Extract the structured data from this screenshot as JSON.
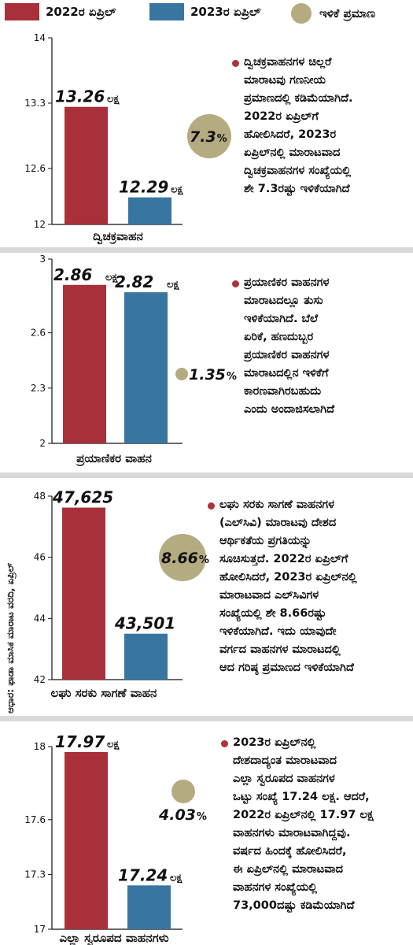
{
  "legend": {
    "items": [
      {
        "label": "2022ರ ಏಪ್ರಿಲ್",
        "color": "#a8303a",
        "shape": "square"
      },
      {
        "label": "2023ರ ಏಪ್ರಿಲ್",
        "color": "#3875a0",
        "shape": "square"
      },
      {
        "label": "ಇಳಿಕೆ ಪ್ರಮಾಣ",
        "color": "#b5ab80",
        "shape": "circle"
      }
    ]
  },
  "colors": {
    "bar_2022": "#a8303a",
    "bar_2023": "#3875a0",
    "decline": "#b5ab80",
    "bullet": "#b03038",
    "divider": "#d9d9d9"
  },
  "source_note": "ಆಧಾರ: ಫಾಡಾ ಮಾಸಿಕ ಮಾರಾಟ ವರದಿ, ಏಪ್ರಿಲ್",
  "chart_data": [
    {
      "type": "bar",
      "categories": [
        "ದ್ವಿಚಕ್ರವಾಹನ"
      ],
      "series": [
        {
          "name": "2022ರ ಏಪ್ರಿಲ್",
          "values": [
            13.26
          ],
          "label": "13.26",
          "unit": "ಲಕ್ಷ"
        },
        {
          "name": "2023ರ ಏಪ್ರಿಲ್",
          "values": [
            12.29
          ],
          "label": "12.29",
          "unit": "ಲಕ್ಷ"
        }
      ],
      "ylim": [
        12,
        14
      ],
      "yticks": [
        "14",
        "13.3",
        "12.6",
        "12"
      ],
      "ytick_values": [
        14,
        13.3,
        12.6,
        12
      ],
      "decline": {
        "value": 7.3,
        "label": "7.3",
        "symbol": "%"
      },
      "note": [
        "ದ್ವಿಚಕ್ರವಾಹನಗಳ ಚಿಲ್ಲರೆ",
        "ಮಾರಾಟವು ಗಣನೀಯ",
        "ಪ್ರಮಾಣದಲ್ಲಿ ಕಡಿಮೆಯಾಗಿದೆ.",
        "2022ರ ಏಪ್ರಿಲ್‌ಗೆ",
        "ಹೋಲಿಸಿದರೆ, 2023ರ",
        "ಏಪ್ರಿಲ್‌ನಲ್ಲಿ ಮಾರಾಟವಾದ",
        "ದ್ವಿಚಕ್ರವಾಹನಗಳ ಸಂಖ್ಯೆಯಲ್ಲಿ",
        "ಶೇ 7.3ರಷ್ಟು ಇಳಿಕೆಯಾಗಿದೆ"
      ]
    },
    {
      "type": "bar",
      "categories": [
        "ಪ್ರಯಾಣಿಕರ ವಾಹನ"
      ],
      "series": [
        {
          "name": "2022ರ ಏಪ್ರಿಲ್",
          "values": [
            2.86
          ],
          "label": "2.86",
          "unit": "ಲಕ್ಷ"
        },
        {
          "name": "2023ರ ಏಪ್ರಿಲ್",
          "values": [
            2.82
          ],
          "label": "2.82",
          "unit": "ಲಕ್ಷ"
        }
      ],
      "ylim": [
        2,
        3
      ],
      "yticks": [
        "3",
        "2.6",
        "2.3",
        "2"
      ],
      "ytick_values": [
        3,
        2.6,
        2.3,
        2
      ],
      "decline": {
        "value": 1.35,
        "label": "1.35",
        "symbol": "%"
      },
      "note": [
        "ಪ್ರಯಾಣಿಕರ ವಾಹನಗಳ",
        "ಮಾರಾಟದಲ್ಲೂ ತುಸು",
        "ಇಳಿಕೆಯಾಗಿದೆ. ಬೆಲೆ",
        "ಏರಿಕೆ, ಹಣದುಬ್ಬರ",
        "ಪ್ರಯಾಣಿಕರ ವಾಹನಗಳ",
        "ಮಾರಾಟದಲ್ಲಿನ ಇಳಿಕೆಗೆ",
        "ಕಾರಣವಾಗಿರಬಹುದು",
        "ಎಂದು ಅಂದಾಜಿಸಲಾಗಿದೆ"
      ]
    },
    {
      "type": "bar",
      "categories": [
        "ಲಘು ಸರಕು ಸಾಗಣೆ ವಾಹನ"
      ],
      "series": [
        {
          "name": "2022ರ ಏಪ್ರಿಲ್",
          "values": [
            47.625
          ],
          "label": "47,625",
          "unit": ""
        },
        {
          "name": "2023ರ ಏಪ್ರಿಲ್",
          "values": [
            43.501
          ],
          "label": "43,501",
          "unit": ""
        }
      ],
      "ylim": [
        42,
        48
      ],
      "yticks": [
        "48",
        "46",
        "44",
        "42"
      ],
      "ytick_values": [
        48,
        46,
        44,
        42
      ],
      "decline": {
        "value": 8.66,
        "label": "8.66",
        "symbol": "%"
      },
      "note": [
        "ಲಘು ಸರಕು ಸಾಗಣೆ ವಾಹನಗಳ",
        "(ಎಲ್‌ಸಿವಿ) ಮಾರಾಟವು ದೇಶದ",
        "ಆರ್ಥಿಕತೆಯ ಪ್ರಗತಿಯನ್ನು",
        "ಸೂಚಿಸುತ್ತದೆ. 2022ರ ಏಪ್ರಿಲ್‌ಗೆ",
        "ಹೋಲಿಸಿದರೆ, 2023ರ ಏಪ್ರಿಲ್‌ನಲ್ಲಿ",
        "ಮಾರಾಟವಾದ ಎಲ್‌ಸಿವಿಗಳ",
        "ಸಂಖ್ಯೆಯಲ್ಲಿ ಶೇ 8.66ರಷ್ಟು",
        "ಇಳಿಕೆಯಾಗಿದೆ. ಇದು ಯಾವುದೇ",
        "ವರ್ಗದ ವಾಹನಗಳ ಮಾರಾಟದಲ್ಲಿ",
        "ಆದ ಗರಿಷ್ಠ ಪ್ರಮಾಣದ ಇಳಿಕೆಯಾಗಿದೆ"
      ]
    },
    {
      "type": "bar",
      "categories": [
        "ಎಲ್ಲಾ ಸ್ವರೂಪದ ವಾಹನಗಳು"
      ],
      "series": [
        {
          "name": "2022ರ ಏಪ್ರಿಲ್",
          "values": [
            17.97
          ],
          "label": "17.97",
          "unit": "ಲಕ್ಷ"
        },
        {
          "name": "2023ರ ಏಪ್ರಿಲ್",
          "values": [
            17.24
          ],
          "label": "17.24",
          "unit": "ಲಕ್ಷ"
        }
      ],
      "ylim": [
        17,
        18
      ],
      "yticks": [
        "18",
        "17.6",
        "17.3",
        "17"
      ],
      "ytick_values": [
        18,
        17.6,
        17.3,
        17
      ],
      "decline": {
        "value": 4.03,
        "label": "4.03",
        "symbol": "%"
      },
      "note": [
        "2023ರ ಏಪ್ರಿಲ್‌ನಲ್ಲಿ",
        "ದೇಶದಾದ್ಯಂತ ಮಾರಾಟವಾದ",
        "ಎಲ್ಲಾ ಸ್ವರೂಪದ ವಾಹನಗಳ",
        "ಒಟ್ಟು ಸಂಖ್ಯೆ 17.24 ಲಕ್ಷ. ಆದರೆ,",
        "2022ರ ಏಪ್ರಿಲ್‌ನಲ್ಲಿ 17.97 ಲಕ್ಷ",
        "ವಾಹನಗಳು ಮಾರಾಟವಾಗಿದ್ದವು.",
        "ವರ್ಷದ ಹಿಂದಕ್ಕೆ ಹೋಲಿಸಿದರೆ,",
        "ಈ ಏಪ್ರಿಲ್‌ನಲ್ಲಿ ಮಾರಾಟವಾದ",
        "ವಾಹನಗಳ ಸಂಖ್ಯೆಯಲ್ಲಿ",
        "73,000ದಷ್ಟು ಕಡಿಮೆಯಾಗಿದೆ"
      ]
    }
  ]
}
